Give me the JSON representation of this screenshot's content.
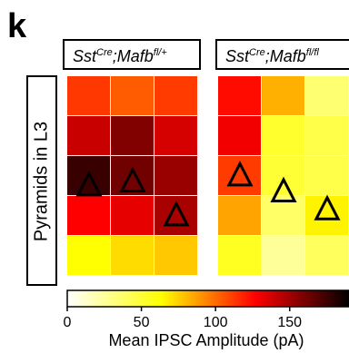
{
  "figure": {
    "panel_letter": "k"
  },
  "chart_data": [
    {
      "type": "heatmap",
      "title": {
        "base": "Sst",
        "sup1": "Cre",
        "sep": ";",
        "gene": "Mafb",
        "sup2": "fl/+"
      },
      "ylabel": "Pyramids in L3",
      "rows": 5,
      "cols": 3,
      "values": [
        [
          113,
          104,
          112
        ],
        [
          140,
          158,
          137
        ],
        [
          176,
          162,
          152
        ],
        [
          127,
          133,
          148
        ],
        [
          63,
          72,
          77
        ]
      ],
      "markers": [
        {
          "symbol": "triangle",
          "row": 2.25,
          "col": 0.5
        },
        {
          "symbol": "triangle",
          "row": 2.15,
          "col": 1.5
        },
        {
          "symbol": "triangle",
          "row": 3.0,
          "col": 2.5
        }
      ],
      "colorscale": {
        "min": 0,
        "max": 190
      }
    },
    {
      "type": "heatmap",
      "title": {
        "base": "Sst",
        "sup1": "Cre",
        "sep": ";",
        "gene": "Mafb",
        "sup2": "fl/fl"
      },
      "rows": 5,
      "cols": 3,
      "values": [
        [
          124,
          83,
          35
        ],
        [
          130,
          52,
          45
        ],
        [
          112,
          50,
          45
        ],
        [
          86,
          38,
          66
        ],
        [
          55,
          25,
          40
        ]
      ],
      "markers": [
        {
          "symbol": "triangle",
          "row": 2.0,
          "col": 0.5
        },
        {
          "symbol": "triangle",
          "row": 2.4,
          "col": 1.5
        },
        {
          "symbol": "triangle",
          "row": 2.85,
          "col": 2.5
        }
      ],
      "colorscale": {
        "min": 0,
        "max": 190
      }
    }
  ],
  "colorbar": {
    "label": "Mean IPSC Amplitude (pA)",
    "min": 0,
    "max": 190,
    "ticks": [
      0,
      50,
      100,
      150
    ],
    "tick_labels": [
      "0",
      "50",
      "100",
      "150"
    ],
    "colors": [
      "#ffffff",
      "#ffff00",
      "#ff0000",
      "#000000"
    ]
  }
}
